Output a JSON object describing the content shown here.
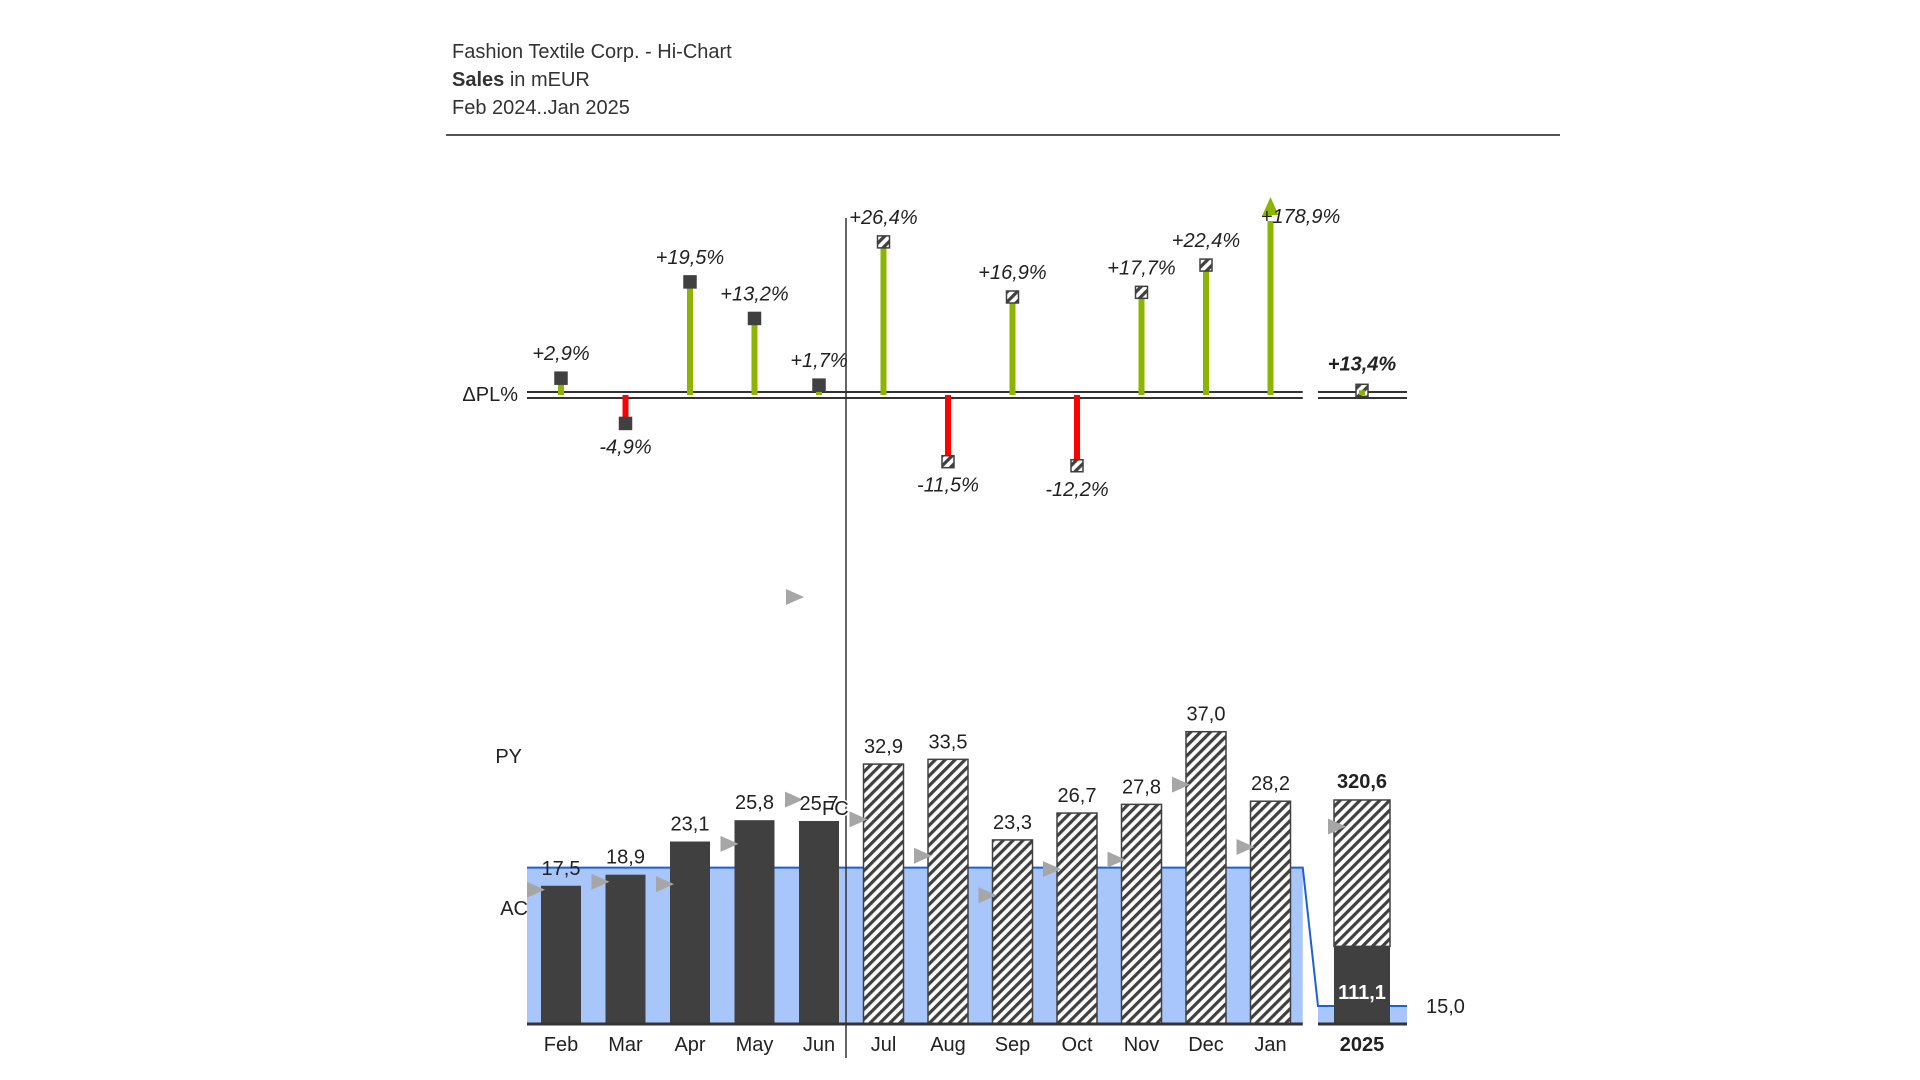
{
  "header": {
    "company": "Fashion Textile Corp. - Hi-Chart",
    "measure_bold": "Sales",
    "measure_rest": " in mEUR",
    "period": "Feb 2024..Jan 2025"
  },
  "chart_data": {
    "type": "bar",
    "categories": [
      "Feb",
      "Mar",
      "Apr",
      "May",
      "Jun",
      "Jul",
      "Aug",
      "Sep",
      "Oct",
      "Nov",
      "Dec",
      "Jan"
    ],
    "scenario": [
      "AC",
      "AC",
      "AC",
      "AC",
      "AC",
      "FC",
      "FC",
      "FC",
      "FC",
      "FC",
      "FC",
      "FC"
    ],
    "values": [
      17.5,
      18.9,
      23.1,
      25.8,
      25.7,
      32.9,
      33.5,
      23.3,
      26.7,
      27.8,
      37.0,
      28.2
    ],
    "value_labels": [
      "17,5",
      "18,9",
      "23,1",
      "25,8",
      "25,7",
      "32,9",
      "33,5",
      "23,3",
      "26,7",
      "27,8",
      "37,0",
      "28,2"
    ],
    "py_values": [
      17.0,
      18.0,
      17.7,
      22.8,
      28.4,
      25.9,
      21.3,
      16.3,
      19.6,
      20.8,
      30.3,
      22.4
    ],
    "delta_pct": [
      2.9,
      -4.9,
      19.5,
      13.2,
      1.7,
      26.4,
      -11.5,
      16.9,
      -12.2,
      17.7,
      22.4,
      178.9
    ],
    "delta_labels": [
      "+2,9%",
      "-4,9%",
      "+19,5%",
      "+13,2%",
      "+1,7%",
      "+26,4%",
      "-11,5%",
      "+16,9%",
      "-12,2%",
      "+17,7%",
      "+22,4%",
      "+178,9%"
    ],
    "delta_plot_cap": 30,
    "band_values": [
      15.0,
      15.0,
      15.0,
      15.0,
      15.0,
      15.0,
      15.0,
      15.0,
      15.0,
      15.0,
      15.0,
      15.0
    ],
    "total": {
      "label": "2025",
      "value": 320.6,
      "value_label": "320,6",
      "ac_part": 111.1,
      "ac_label": "111,1",
      "py_value": 282.7,
      "delta_pct": 13.4,
      "delta_label": "+13,4%",
      "band_value": 1.5,
      "band_label": "15,0"
    },
    "row_labels": {
      "delta": "ΔPL%",
      "py": "PY",
      "ac": "AC",
      "fc": "FC"
    },
    "colors": {
      "actual": "#404040",
      "positive": "#8cb400",
      "negative": "#ff0000",
      "py_marker": "#a6a6a6",
      "band_fill": "#a9c6fb",
      "band_line": "#1b62d6",
      "axis": "#333333"
    }
  }
}
